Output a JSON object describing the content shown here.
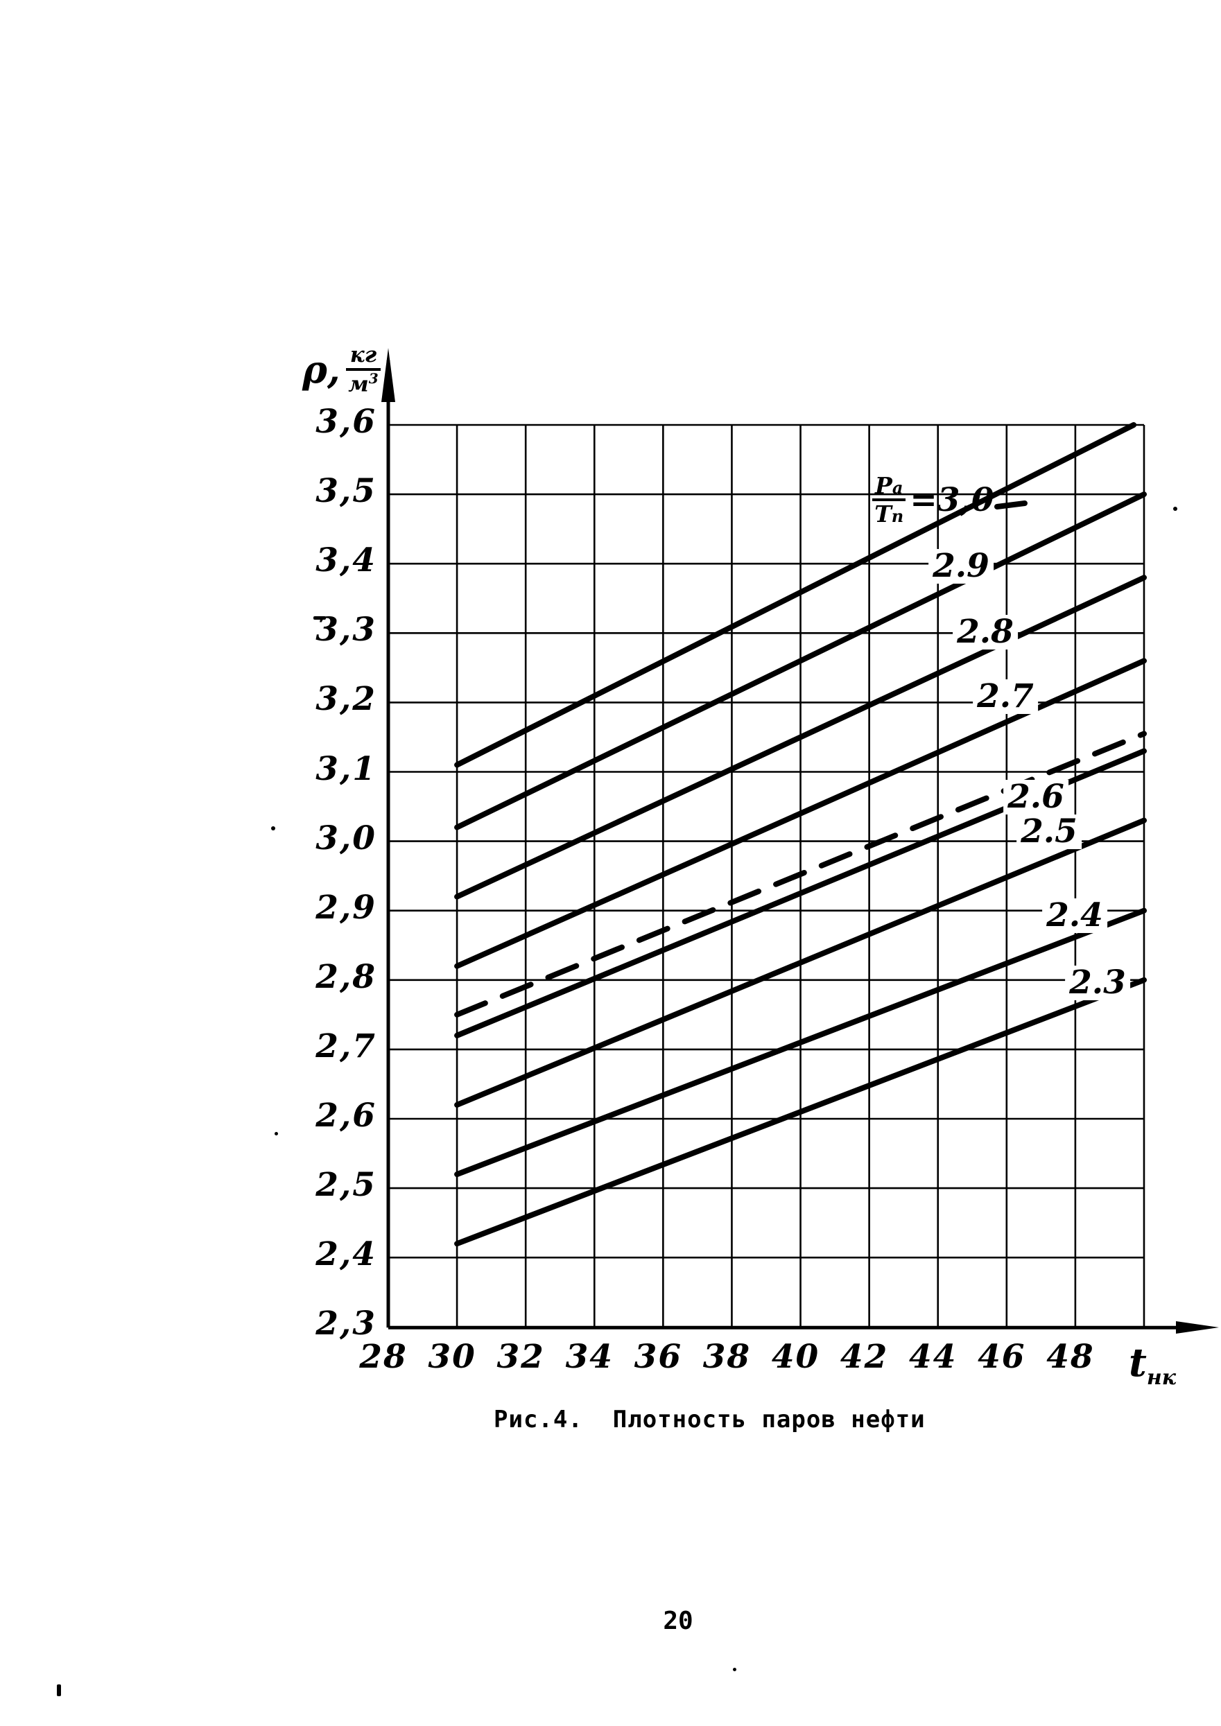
{
  "page_number": "20",
  "caption": "Рис.4.  Плотность паров нефти",
  "y_axis": {
    "symbol": "ρ,",
    "unit_numerator": "кг",
    "unit_denominator": "м",
    "unit_denominator_exp": "3",
    "tick_labels": [
      "3,6",
      "3,5",
      "3,4",
      "3,3",
      "3,2",
      "3,1",
      "3,0",
      "2,9",
      "2,8",
      "2,7",
      "2,6",
      "2,5",
      "2,4",
      "2,3"
    ],
    "tick_values": [
      3.6,
      3.5,
      3.4,
      3.3,
      3.2,
      3.1,
      3.0,
      2.9,
      2.8,
      2.7,
      2.6,
      2.5,
      2.4,
      2.3
    ]
  },
  "x_axis": {
    "symbol": "t",
    "symbol_subscript": "нк",
    "tick_labels": [
      "28",
      "30",
      "32",
      "34",
      "36",
      "38",
      "40",
      "42",
      "44",
      "46",
      "48"
    ],
    "tick_values": [
      28,
      30,
      32,
      34,
      36,
      38,
      40,
      42,
      44,
      46,
      48
    ]
  },
  "family_label": {
    "numerator": "P",
    "numerator_sub": "a",
    "denominator": "Т",
    "denominator_sub": "п",
    "equals": "=",
    "value": "3,0"
  },
  "chart_data": {
    "type": "line",
    "title": "Плотность паров нефти",
    "xlabel": "t нк",
    "ylabel": "ρ, кг/м³",
    "xlim": [
      28,
      50
    ],
    "ylim": [
      2.3,
      3.6
    ],
    "grid": true,
    "x_gridlines": [
      30,
      32,
      34,
      36,
      38,
      40,
      42,
      44,
      46,
      48,
      50
    ],
    "y_gridlines": [
      2.3,
      2.4,
      2.5,
      2.6,
      2.7,
      2.8,
      2.9,
      3.0,
      3.1,
      3.2,
      3.3,
      3.4,
      3.5,
      3.6
    ],
    "series": [
      {
        "name": "Pa/Tп=3,0",
        "label": "",
        "parameter": 3.0,
        "style": "solid",
        "x": [
          30,
          49.7
        ],
        "y": [
          3.11,
          3.6
        ]
      },
      {
        "name": "2.9",
        "label": "2.9",
        "parameter": 2.9,
        "style": "solid",
        "x": [
          30,
          50
        ],
        "y": [
          3.02,
          3.5
        ]
      },
      {
        "name": "2.8",
        "label": "2.8",
        "parameter": 2.8,
        "style": "solid",
        "x": [
          30,
          50
        ],
        "y": [
          2.92,
          3.38
        ]
      },
      {
        "name": "2.7",
        "label": "2.7",
        "parameter": 2.7,
        "style": "solid",
        "x": [
          30,
          50
        ],
        "y": [
          2.82,
          3.26
        ]
      },
      {
        "name": "dashed-guide",
        "label": "",
        "style": "dashed",
        "x": [
          30,
          50
        ],
        "y": [
          2.75,
          3.155
        ]
      },
      {
        "name": "2.6",
        "label": "2.6",
        "parameter": 2.6,
        "style": "solid",
        "x": [
          30,
          50
        ],
        "y": [
          2.72,
          3.13
        ]
      },
      {
        "name": "2.5",
        "label": "2.5",
        "parameter": 2.5,
        "style": "solid",
        "x": [
          30,
          50
        ],
        "y": [
          2.62,
          3.03
        ]
      },
      {
        "name": "2.4",
        "label": "2.4",
        "parameter": 2.4,
        "style": "solid",
        "x": [
          30,
          50
        ],
        "y": [
          2.52,
          2.9
        ]
      },
      {
        "name": "2.3",
        "label": "2.3",
        "parameter": 2.3,
        "style": "solid",
        "x": [
          30,
          50
        ],
        "y": [
          2.42,
          2.8
        ]
      }
    ]
  },
  "ink_color": "#000000",
  "paper_color": "#ffffff"
}
